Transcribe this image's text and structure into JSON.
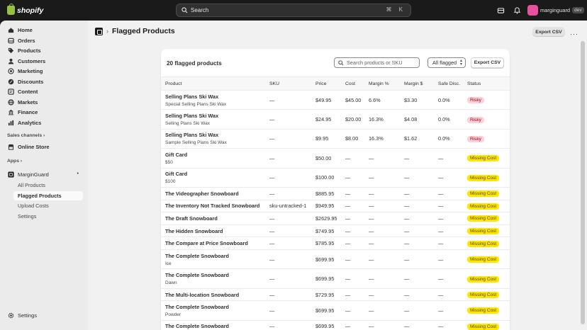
{
  "topbar": {
    "logo_text": "shopify",
    "search_placeholder": "Search",
    "shortcut": "⌘ K",
    "store_name": "marginguard",
    "store_badge": "dev"
  },
  "sidebar": {
    "main_items": [
      {
        "label": "Home",
        "icon": "home-icon"
      },
      {
        "label": "Orders",
        "icon": "inbox-icon"
      },
      {
        "label": "Products",
        "icon": "tag-icon"
      },
      {
        "label": "Customers",
        "icon": "person-icon"
      },
      {
        "label": "Marketing",
        "icon": "target-icon"
      },
      {
        "label": "Discounts",
        "icon": "discount-icon"
      },
      {
        "label": "Content",
        "icon": "content-icon"
      },
      {
        "label": "Markets",
        "icon": "globe-icon"
      },
      {
        "label": "Finance",
        "icon": "bank-icon"
      },
      {
        "label": "Analytics",
        "icon": "chart-icon"
      }
    ],
    "sales_channels_label": "Sales channels",
    "online_store_label": "Online Store",
    "apps_label": "Apps",
    "app_name": "MarginGuard",
    "app_items": [
      "All Products",
      "Flagged Products",
      "Upload Costs",
      "Settings"
    ],
    "settings_label": "Settings"
  },
  "page": {
    "title": "Flagged Products",
    "export_label": "Export CSV"
  },
  "card": {
    "title": "20 flagged products",
    "search_placeholder": "Search products or SKU",
    "filter_value": "All flagged",
    "export_label": "Export CSV"
  },
  "table": {
    "headers": [
      "Product",
      "SKU",
      "Price",
      "Cost",
      "Margin %",
      "Margin $",
      "Safe Disc.",
      "Status"
    ],
    "rows": [
      {
        "name": "Selling Plans Ski Wax",
        "sub": "Special Selling Plans Ski Wax",
        "sku": "—",
        "price": "$49.95",
        "cost": "$45.00",
        "margin_pct": "6.6%",
        "margin_usd": "$3.30",
        "safe": "0.0%",
        "status": "Risky"
      },
      {
        "name": "Selling Plans Ski Wax",
        "sub": "Selling Plans Ski Wax",
        "sku": "—",
        "price": "$24.95",
        "cost": "$20.00",
        "margin_pct": "16.3%",
        "margin_usd": "$4.08",
        "safe": "0.0%",
        "status": "Risky"
      },
      {
        "name": "Selling Plans Ski Wax",
        "sub": "Sample Selling Plans Ski Wax",
        "sku": "—",
        "price": "$9.95",
        "cost": "$8.00",
        "margin_pct": "16.3%",
        "margin_usd": "$1.62",
        "safe": "0.0%",
        "status": "Risky"
      },
      {
        "name": "Gift Card",
        "sub": "$50",
        "sku": "—",
        "price": "$50.00",
        "cost": "—",
        "margin_pct": "—",
        "margin_usd": "—",
        "safe": "—",
        "status": "Missing Cost"
      },
      {
        "name": "Gift Card",
        "sub": "$100",
        "sku": "—",
        "price": "$100.00",
        "cost": "—",
        "margin_pct": "—",
        "margin_usd": "—",
        "safe": "—",
        "status": "Missing Cost"
      },
      {
        "name": "The Videographer Snowboard",
        "sub": "",
        "sku": "—",
        "price": "$885.95",
        "cost": "—",
        "margin_pct": "—",
        "margin_usd": "—",
        "safe": "—",
        "status": "Missing Cost"
      },
      {
        "name": "The Inventory Not Tracked Snowboard",
        "sub": "",
        "sku": "sku-untracked-1",
        "price": "$949.95",
        "cost": "—",
        "margin_pct": "—",
        "margin_usd": "—",
        "safe": "—",
        "status": "Missing Cost"
      },
      {
        "name": "The Draft Snowboard",
        "sub": "",
        "sku": "—",
        "price": "$2629.95",
        "cost": "—",
        "margin_pct": "—",
        "margin_usd": "—",
        "safe": "—",
        "status": "Missing Cost"
      },
      {
        "name": "The Hidden Snowboard",
        "sub": "",
        "sku": "—",
        "price": "$749.95",
        "cost": "—",
        "margin_pct": "—",
        "margin_usd": "—",
        "safe": "—",
        "status": "Missing Cost"
      },
      {
        "name": "The Compare at Price Snowboard",
        "sub": "",
        "sku": "—",
        "price": "$785.95",
        "cost": "—",
        "margin_pct": "—",
        "margin_usd": "—",
        "safe": "—",
        "status": "Missing Cost"
      },
      {
        "name": "The Complete Snowboard",
        "sub": "Ice",
        "sku": "—",
        "price": "$699.95",
        "cost": "—",
        "margin_pct": "—",
        "margin_usd": "—",
        "safe": "—",
        "status": "Missing Cost"
      },
      {
        "name": "The Complete Snowboard",
        "sub": "Dawn",
        "sku": "—",
        "price": "$699.95",
        "cost": "—",
        "margin_pct": "—",
        "margin_usd": "—",
        "safe": "—",
        "status": "Missing Cost"
      },
      {
        "name": "The Multi-location Snowboard",
        "sub": "",
        "sku": "—",
        "price": "$729.95",
        "cost": "—",
        "margin_pct": "—",
        "margin_usd": "—",
        "safe": "—",
        "status": "Missing Cost"
      },
      {
        "name": "The Complete Snowboard",
        "sub": "Powder",
        "sku": "—",
        "price": "$699.95",
        "cost": "—",
        "margin_pct": "—",
        "margin_usd": "—",
        "safe": "—",
        "status": "Missing Cost"
      },
      {
        "name": "The Complete Snowboard",
        "sub": "",
        "sku": "—",
        "price": "$699.95",
        "cost": "—",
        "margin_pct": "—",
        "margin_usd": "—",
        "safe": "—",
        "status": "Missing Cost"
      }
    ]
  },
  "colors": {
    "risky_bg": "#fed1d7",
    "risky_text": "#8e0b21",
    "missing_bg": "#ffe600",
    "missing_text": "#4f4700",
    "brand_green": "#95bf47"
  }
}
